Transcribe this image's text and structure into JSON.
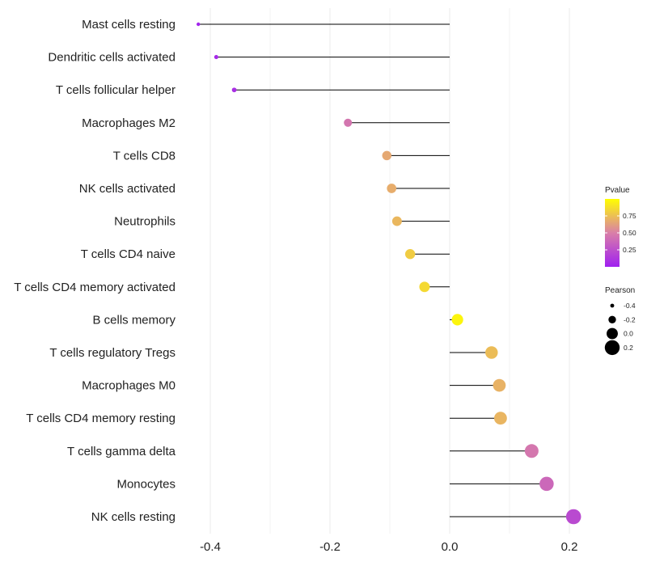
{
  "chart_data": {
    "type": "lollipop",
    "xlim": [
      -0.4,
      0.2
    ],
    "xticks": [
      -0.4,
      -0.2,
      0.0,
      0.2
    ],
    "xtick_labels": [
      "-0.4",
      "-0.2",
      "0.0",
      "0.2"
    ],
    "categories": [
      "Mast cells resting",
      "Dendritic cells activated",
      "T cells follicular helper",
      "Macrophages M2",
      "T cells CD8",
      "NK cells activated",
      "Neutrophils",
      "T cells CD4 naive",
      "T cells CD4 memory activated",
      "B cells memory",
      "T cells regulatory  Tregs ",
      "Macrophages M0",
      "T cells CD4 memory resting",
      "T cells gamma delta",
      "Monocytes",
      "NK cells resting"
    ],
    "pearson": [
      -0.42,
      -0.39,
      -0.36,
      -0.17,
      -0.105,
      -0.097,
      -0.088,
      -0.066,
      -0.042,
      0.013,
      0.07,
      0.083,
      0.085,
      0.137,
      0.162,
      0.207
    ],
    "pvalue": [
      0.02,
      0.05,
      0.08,
      0.45,
      0.66,
      0.68,
      0.72,
      0.8,
      0.85,
      0.96,
      0.74,
      0.7,
      0.71,
      0.46,
      0.38,
      0.22
    ],
    "color_legend": {
      "title": "Pvalue",
      "ticks": [
        0.25,
        0.5,
        0.75
      ],
      "tick_labels": [
        "0.25",
        "0.50",
        "0.75"
      ],
      "low_color": "#a020f0",
      "mid_color": "#d97fa8",
      "high_color": "#ffff00"
    },
    "size_legend": {
      "title": "Pearson",
      "ticks": [
        -0.4,
        -0.2,
        0.0,
        0.2
      ],
      "tick_labels": [
        "-0.4",
        "-0.2",
        "0.0",
        "0.2"
      ]
    },
    "stem_color": "#000000",
    "grid": true
  }
}
